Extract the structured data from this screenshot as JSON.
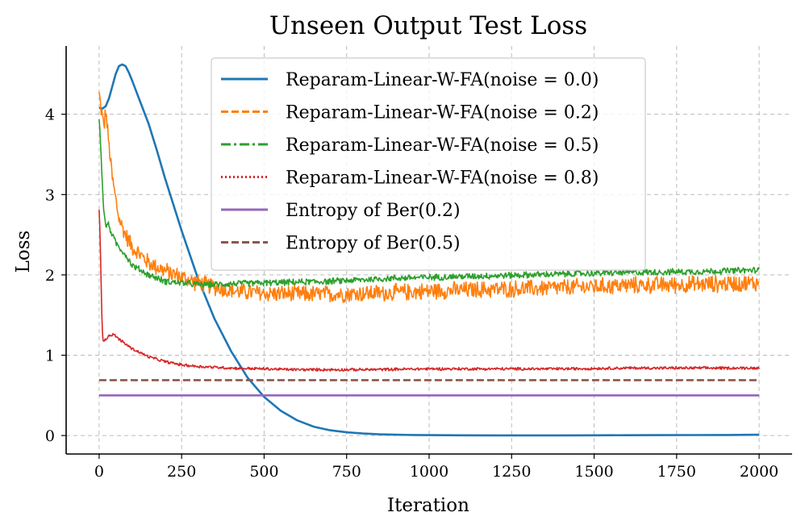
{
  "chart_data": {
    "type": "line",
    "title": "Unseen Output Test Loss",
    "xlabel": "Iteration",
    "ylabel": "Loss",
    "xlim": [
      -100,
      2100
    ],
    "ylim": [
      -0.23,
      4.85
    ],
    "xticks": [
      0,
      250,
      500,
      750,
      1000,
      1250,
      1500,
      1750,
      2000
    ],
    "yticks": [
      0,
      1,
      2,
      3,
      4
    ],
    "grid": true,
    "legend_position": "top-right",
    "series": [
      {
        "name": "Reparam-Linear-W-FA(noise = 0.0)",
        "color": "#1f77b4",
        "style": "solid",
        "noise": 0,
        "x": [
          0,
          10,
          20,
          30,
          40,
          50,
          60,
          70,
          80,
          90,
          100,
          125,
          150,
          175,
          200,
          250,
          300,
          350,
          400,
          450,
          500,
          550,
          600,
          650,
          700,
          750,
          800,
          850,
          900,
          950,
          1000,
          1100,
          1200,
          1300,
          1400,
          1500,
          1600,
          1700,
          1800,
          1900,
          2000
        ],
        "y": [
          4.08,
          4.07,
          4.1,
          4.2,
          4.35,
          4.5,
          4.6,
          4.62,
          4.6,
          4.52,
          4.42,
          4.15,
          3.88,
          3.55,
          3.2,
          2.55,
          1.95,
          1.45,
          1.05,
          0.72,
          0.48,
          0.31,
          0.19,
          0.11,
          0.065,
          0.04,
          0.025,
          0.015,
          0.01,
          0.007,
          0.005,
          0.003,
          0.002,
          0.002,
          0.002,
          0.003,
          0.004,
          0.005,
          0.006,
          0.007,
          0.01
        ]
      },
      {
        "name": "Reparam-Linear-W-FA(noise = 0.2)",
        "color": "#ff7f0e",
        "style": "dashed",
        "noise": 0.12,
        "x": [
          0,
          5,
          10,
          15,
          20,
          30,
          40,
          50,
          60,
          80,
          100,
          150,
          200,
          250,
          300,
          350,
          400,
          500,
          600,
          700,
          800,
          900,
          1000,
          1200,
          1400,
          1600,
          1800,
          2000
        ],
        "y": [
          4.25,
          4.1,
          3.95,
          3.85,
          4.05,
          3.6,
          3.2,
          2.95,
          2.7,
          2.5,
          2.35,
          2.15,
          2.05,
          1.97,
          1.9,
          1.85,
          1.8,
          1.77,
          1.76,
          1.76,
          1.77,
          1.78,
          1.8,
          1.82,
          1.84,
          1.87,
          1.88,
          1.9
        ]
      },
      {
        "name": "Reparam-Linear-W-FA(noise = 0.5)",
        "color": "#2ca02c",
        "style": "dashdot",
        "noise": 0.045,
        "x": [
          0,
          5,
          10,
          15,
          20,
          25,
          30,
          40,
          50,
          60,
          80,
          100,
          150,
          200,
          250,
          300,
          350,
          400,
          500,
          600,
          700,
          800,
          900,
          1000,
          1200,
          1400,
          1600,
          1800,
          2000
        ],
        "y": [
          3.95,
          3.6,
          3.1,
          2.75,
          2.6,
          2.65,
          2.6,
          2.5,
          2.4,
          2.35,
          2.25,
          2.12,
          2.0,
          1.92,
          1.9,
          1.88,
          1.88,
          1.89,
          1.9,
          1.91,
          1.92,
          1.94,
          1.96,
          1.97,
          1.99,
          2.01,
          2.03,
          2.04,
          2.06
        ]
      },
      {
        "name": "Reparam-Linear-W-FA(noise = 0.8)",
        "color": "#d62728",
        "style": "dotted",
        "noise": 0.02,
        "x": [
          0,
          3,
          6,
          9,
          12,
          16,
          20,
          30,
          40,
          50,
          60,
          80,
          100,
          150,
          200,
          250,
          300,
          400,
          500,
          600,
          700,
          800,
          1000,
          1200,
          1400,
          1600,
          1800,
          2000
        ],
        "y": [
          2.8,
          2.5,
          1.9,
          1.35,
          1.2,
          1.18,
          1.2,
          1.24,
          1.26,
          1.24,
          1.2,
          1.14,
          1.08,
          0.98,
          0.92,
          0.88,
          0.86,
          0.84,
          0.83,
          0.82,
          0.82,
          0.82,
          0.83,
          0.83,
          0.83,
          0.84,
          0.84,
          0.84
        ]
      },
      {
        "name": "Entropy of Ber(0.2)",
        "color": "#9467bd",
        "style": "solid",
        "noise": 0,
        "x": [
          0,
          2000
        ],
        "y": [
          0.5,
          0.5
        ]
      },
      {
        "name": "Entropy of Ber(0.5)",
        "color": "#8c564b",
        "style": "dashed",
        "noise": 0,
        "x": [
          0,
          2000
        ],
        "y": [
          0.69,
          0.69
        ]
      }
    ]
  }
}
